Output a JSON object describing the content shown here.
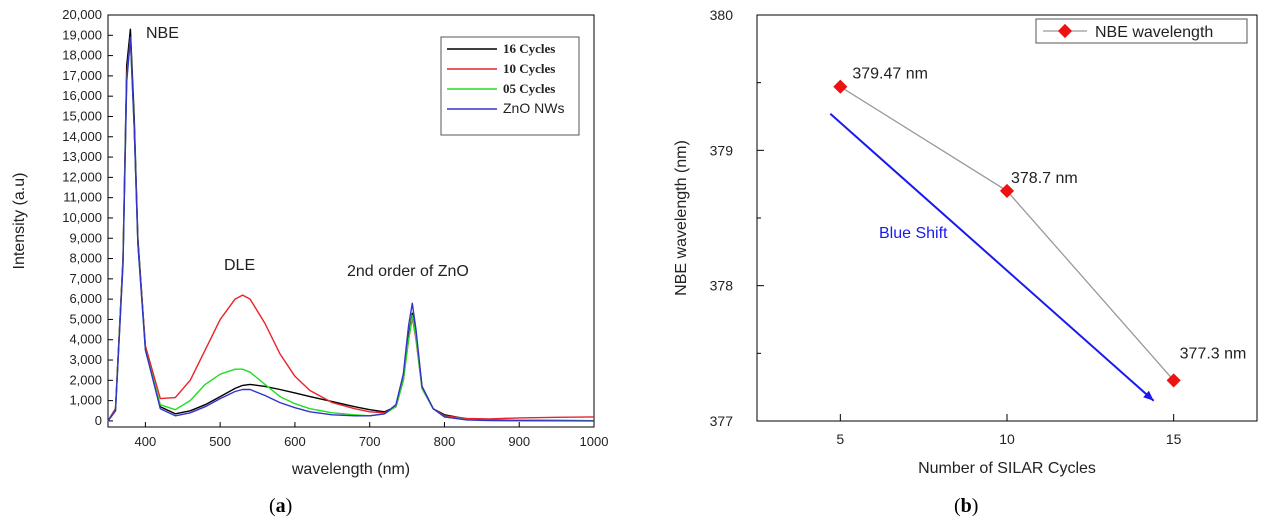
{
  "chart_data": [
    {
      "panel": "(a)",
      "type": "line",
      "title": "",
      "xlabel": "wavelength (nm)",
      "ylabel": "Intensity (a.u)",
      "xlim": [
        350,
        1000
      ],
      "ylim": [
        -300,
        20000
      ],
      "x_ticks": [
        400,
        500,
        600,
        700,
        800,
        900,
        1000
      ],
      "x_tick_labels": [
        "400",
        "500",
        "600",
        "700",
        "800",
        "900",
        "1000"
      ],
      "y_ticks": [
        0,
        1000,
        2000,
        3000,
        4000,
        5000,
        6000,
        7000,
        8000,
        9000,
        10000,
        11000,
        12000,
        13000,
        14000,
        15000,
        16000,
        17000,
        18000,
        19000,
        20000
      ],
      "y_tick_labels": [
        "0",
        "1,000",
        "2,000",
        "3,000",
        "4,000",
        "5,000",
        "6,000",
        "7,000",
        "8,000",
        "9,000",
        "10,000",
        "11,000",
        "12,000",
        "13,000",
        "14,000",
        "15,000",
        "16,000",
        "17,000",
        "18,000",
        "19,000",
        "20,000"
      ],
      "grid": false,
      "legend_position": "top-right",
      "annotations": [
        "NBE",
        "DLE",
        "2nd order of ZnO"
      ],
      "x": [
        350,
        360,
        370,
        375,
        380,
        385,
        390,
        400,
        420,
        440,
        460,
        480,
        500,
        520,
        530,
        540,
        560,
        580,
        600,
        620,
        650,
        680,
        700,
        720,
        735,
        745,
        752,
        757,
        762,
        770,
        785,
        800,
        830,
        860,
        900,
        950,
        1000
      ],
      "series": [
        {
          "name": "16 Cycles",
          "color": "#000000",
          "values": [
            0,
            600,
            8000,
            17500,
            19300,
            15000,
            9000,
            3600,
            700,
            350,
            500,
            800,
            1200,
            1600,
            1750,
            1800,
            1700,
            1550,
            1380,
            1200,
            950,
            700,
            550,
            450,
            700,
            2000,
            4200,
            5300,
            4200,
            1700,
            600,
            300,
            100,
            50,
            30,
            20,
            10
          ]
        },
        {
          "name": "10 Cycles",
          "color": "#e8232a",
          "values": [
            0,
            600,
            8000,
            17000,
            18900,
            14500,
            8800,
            3700,
            1100,
            1150,
            2000,
            3500,
            5000,
            6000,
            6200,
            6000,
            4800,
            3300,
            2200,
            1500,
            900,
            600,
            450,
            400,
            700,
            2000,
            4000,
            5100,
            4000,
            1600,
            600,
            250,
            120,
            100,
            150,
            180,
            200
          ]
        },
        {
          "name": "05 Cycles",
          "color": "#22dd22",
          "values": [
            0,
            500,
            7800,
            16800,
            18800,
            14400,
            8700,
            3500,
            800,
            550,
            1000,
            1800,
            2300,
            2550,
            2550,
            2400,
            1800,
            1200,
            850,
            600,
            400,
            300,
            250,
            350,
            700,
            2000,
            4000,
            5200,
            4100,
            1600,
            600,
            200,
            60,
            30,
            20,
            10,
            5
          ]
        },
        {
          "name": "ZnO NWs",
          "color": "#3333cc",
          "values": [
            0,
            500,
            7700,
            16700,
            18900,
            14500,
            8700,
            3500,
            600,
            250,
            400,
            700,
            1100,
            1450,
            1550,
            1550,
            1250,
            900,
            650,
            450,
            300,
            250,
            250,
            350,
            800,
            2300,
            4700,
            5800,
            4500,
            1700,
            600,
            200,
            50,
            20,
            10,
            5,
            0
          ]
        }
      ]
    },
    {
      "panel": "(b)",
      "type": "line",
      "title": "",
      "xlabel": "Number of SILAR Cycles",
      "ylabel": "NBE wavelength (nm)",
      "xlim": [
        2.5,
        17.5
      ],
      "ylim": [
        377,
        380
      ],
      "x_ticks": [
        5,
        10,
        15
      ],
      "x_tick_labels": [
        "5",
        "10",
        "15"
      ],
      "y_ticks": [
        377,
        378,
        379,
        380
      ],
      "y_tick_labels": [
        "377",
        "378",
        "379",
        "380"
      ],
      "grid": false,
      "legend_position": "top-right",
      "series": [
        {
          "name": "NBE wavelength",
          "color": "#ee1111",
          "line_color": "#9a9a9a",
          "x": [
            5,
            10,
            15
          ],
          "values": [
            379.47,
            378.7,
            377.3
          ],
          "data_labels": [
            "379.47 nm",
            "378.7 nm",
            "377.3 nm"
          ]
        }
      ],
      "annotations": [
        {
          "text": "Blue Shift",
          "color": "#1a1aee",
          "arrow_from": [
            4.7,
            379.27
          ],
          "arrow_to": [
            14.4,
            377.15
          ]
        }
      ]
    }
  ],
  "captions": {
    "a": "a",
    "b": "b"
  },
  "colors": {
    "axis": "#000000",
    "arrow": "#1a1aee"
  }
}
